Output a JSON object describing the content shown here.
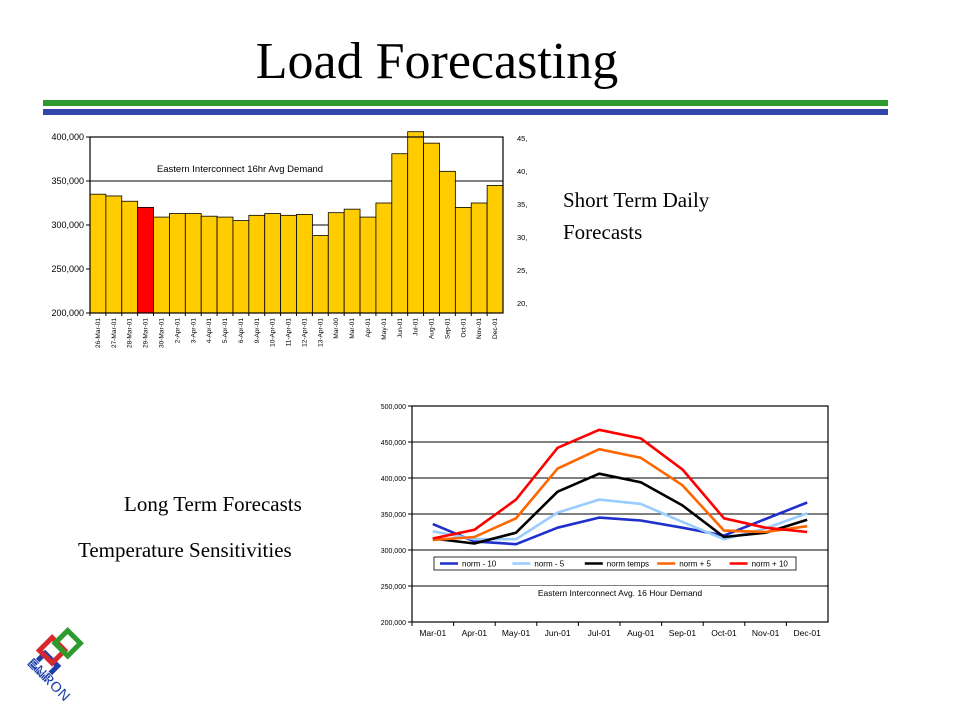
{
  "slide": {
    "title": "Load Forecasting",
    "rule_colors": [
      "#2E9B2E",
      "#3344AA"
    ],
    "short_term_line1": "Short Term Daily",
    "short_term_line2": "Forecasts",
    "long_term": "Long Term Forecasts",
    "temp_sens": "Temperature Sensitivities",
    "logo": {
      "text": "ENRON",
      "colors": [
        "#1F3FA8",
        "#D8282F",
        "#2E9B2E",
        "#E8B400"
      ]
    }
  },
  "chart_data": [
    {
      "type": "bar",
      "title": "Eastern Interconnect 16hr Avg Demand",
      "categories": [
        "26-Mar-01",
        "27-Mar-01",
        "28-Mar-01",
        "29-Mar-01",
        "30-Mar-01",
        "2-Apr-01",
        "3-Apr-01",
        "4-Apr-01",
        "5-Apr-01",
        "6-Apr-01",
        "9-Apr-01",
        "10-Apr-01",
        "11-Apr-01",
        "12-Apr-01",
        "13-Apr-01",
        "Mar-00",
        "Mar-01",
        "Apr-01",
        "May-01",
        "Jun-01",
        "Jul-01",
        "Aug-01",
        "Sep-01",
        "Oct-01",
        "Nov-01",
        "Dec-01"
      ],
      "values": [
        335000,
        333000,
        327000,
        320000,
        309000,
        313000,
        313000,
        310000,
        309000,
        305000,
        311000,
        313000,
        311000,
        312000,
        288000,
        314000,
        318000,
        309000,
        325000,
        381000,
        406000,
        393000,
        361000,
        320000,
        325000,
        345000
      ],
      "highlight_index": 3,
      "bar_color": "#FFCC00",
      "highlight_color": "#FF0000",
      "ylim": [
        200000,
        400000
      ],
      "yticks": [
        "200,000",
        "250,000",
        "300,000",
        "350,000",
        "400,000"
      ],
      "right_ticks": [
        "45,",
        "40,",
        "35,",
        "30,",
        "25,",
        "20,"
      ]
    },
    {
      "type": "line",
      "title": "Eastern Interconnect Avg. 16 Hour Demand",
      "categories": [
        "Mar-01",
        "Apr-01",
        "May-01",
        "Jun-01",
        "Jul-01",
        "Aug-01",
        "Sep-01",
        "Oct-01",
        "Nov-01",
        "Dec-01"
      ],
      "ylim": [
        200000,
        500000
      ],
      "yticks": [
        "200,000",
        "250,000",
        "300,000",
        "350,000",
        "400,000",
        "450,000",
        "500,000"
      ],
      "legend_position": "inside-middle",
      "series": [
        {
          "name": "norm - 10",
          "color": "#1F2FCC",
          "values": [
            336000,
            312000,
            308000,
            331000,
            345000,
            341000,
            331000,
            320000,
            343000,
            366000
          ]
        },
        {
          "name": "norm - 5",
          "color": "#99CCFF",
          "values": [
            326000,
            315000,
            315000,
            352000,
            370000,
            364000,
            339000,
            315000,
            330000,
            351000
          ]
        },
        {
          "name": "norm temps",
          "color": "#000000",
          "values": [
            316000,
            309000,
            324000,
            381000,
            406000,
            394000,
            362000,
            318000,
            324000,
            342000
          ]
        },
        {
          "name": "norm + 5",
          "color": "#FF6600",
          "values": [
            314000,
            318000,
            344000,
            413000,
            440000,
            428000,
            390000,
            327000,
            325000,
            333000
          ]
        },
        {
          "name": "norm + 10",
          "color": "#FF0000",
          "values": [
            316000,
            328000,
            370000,
            442000,
            467000,
            455000,
            412000,
            344000,
            331000,
            325000
          ]
        }
      ]
    }
  ]
}
